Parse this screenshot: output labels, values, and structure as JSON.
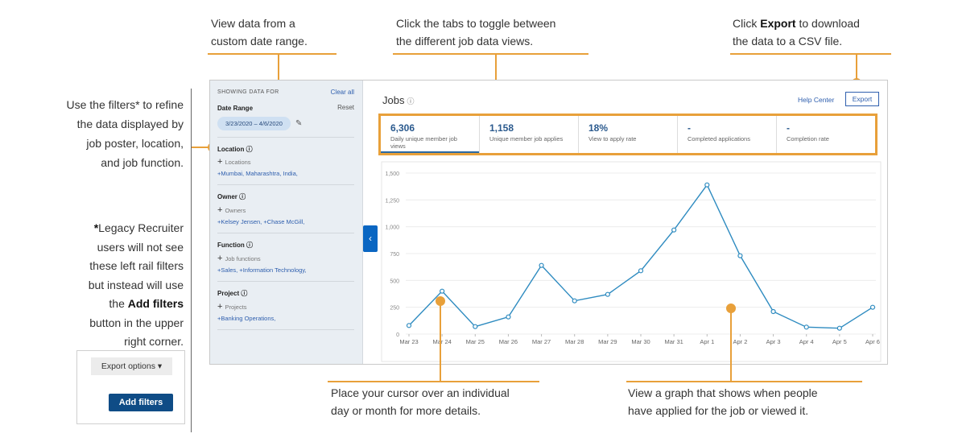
{
  "annotations": {
    "date_range_1": "View data from a",
    "date_range_2": "custom date range.",
    "tabs_1": "Click the tabs to toggle between",
    "tabs_2": "the different job data views.",
    "export_1a": "Click ",
    "export_1b": "Export",
    "export_1c": " to download",
    "export_2": "the data to a CSV file.",
    "filters_1": "Use the filters* to refine",
    "filters_2": "the data displayed by",
    "filters_3": "job poster, location,",
    "filters_4": "and job function.",
    "legacy_1a": "*",
    "legacy_1b": "Legacy Recruiter",
    "legacy_2": "users will not see",
    "legacy_3": "these left rail filters",
    "legacy_4": "but instead will use",
    "legacy_5a": "the ",
    "legacy_5b": "Add filters",
    "legacy_6": "button in the upper",
    "legacy_7": "right corner.",
    "cursor_1": "Place your cursor over an individual",
    "cursor_2": "day or month for more details.",
    "graph_1": "View a graph that shows when people",
    "graph_2": "have applied for the job or viewed it."
  },
  "rail": {
    "showing": "SHOWING DATA FOR",
    "clear_all": "Clear all",
    "date_range_label": "Date Range",
    "reset": "Reset",
    "date_value": "3/23/2020 – 4/6/2020",
    "location_label": "Location",
    "location_add": "Locations",
    "location_value": "+Mumbai, Maharashtra, India,",
    "owner_label": "Owner",
    "owner_add": "Owners",
    "owner_value": "+Kelsey Jensen, +Chase McGill,",
    "function_label": "Function",
    "function_add": "Job functions",
    "function_value": "+Sales, +Information Technology,",
    "project_label": "Project",
    "project_add": "Projects",
    "project_value": "+Banking Operations,"
  },
  "main": {
    "title": "Jobs",
    "help_center": "Help Center",
    "export": "Export"
  },
  "tabs": [
    {
      "value": "6,306",
      "label": "Daily unique member job views"
    },
    {
      "value": "1,158",
      "label": "Unique member job applies"
    },
    {
      "value": "18%",
      "label": "View to apply rate"
    },
    {
      "value": "-",
      "label": "Completed applications"
    },
    {
      "value": "-",
      "label": "Completion rate"
    }
  ],
  "legacy_ui": {
    "export_options": "Export options",
    "add_filters": "Add filters"
  },
  "chart_data": {
    "type": "line",
    "categories": [
      "Mar 23",
      "Mar 24",
      "Mar 25",
      "Mar 26",
      "Mar 27",
      "Mar 28",
      "Mar 29",
      "Mar 30",
      "Mar 31",
      "Apr 1",
      "Apr 2",
      "Apr 3",
      "Apr 4",
      "Apr 5",
      "Apr 6"
    ],
    "values": [
      80,
      400,
      70,
      160,
      640,
      310,
      370,
      590,
      970,
      1390,
      730,
      210,
      65,
      55,
      250
    ],
    "ylim": [
      0,
      1500
    ],
    "yticks": [
      "0",
      "250",
      "500",
      "750",
      "1,000",
      "1,250",
      "1,500"
    ],
    "line_color": "#2e8bc0"
  }
}
